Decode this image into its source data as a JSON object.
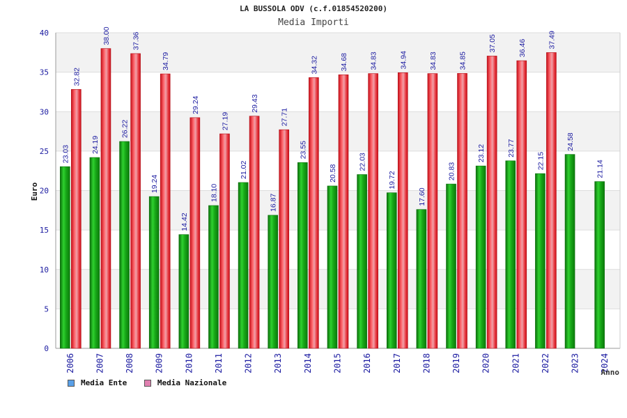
{
  "chart_data": {
    "type": "bar",
    "title": "LA BUSSOLA ODV (c.f.01854520200)",
    "subtitle": "Media Importi",
    "xlabel": "Anno",
    "ylabel": "Euro",
    "ylim": [
      0,
      40
    ],
    "yticks": [
      0,
      5,
      10,
      15,
      20,
      25,
      30,
      35,
      40
    ],
    "grid": true,
    "legend_position": "bottom-left",
    "categories": [
      "2006",
      "2007",
      "2008",
      "2009",
      "2010",
      "2011",
      "2012",
      "2013",
      "2014",
      "2015",
      "2016",
      "2017",
      "2018",
      "2019",
      "2020",
      "2021",
      "2022",
      "2023",
      "2024"
    ],
    "series": [
      {
        "name": "Media Ente",
        "color": "#1aa51a",
        "legend_color": "#5aa0e8",
        "values": [
          23.03,
          24.19,
          26.22,
          19.24,
          14.42,
          18.1,
          21.02,
          16.87,
          23.55,
          20.58,
          22.03,
          19.72,
          17.6,
          20.83,
          23.12,
          23.77,
          22.15,
          24.58,
          21.14
        ],
        "labels": [
          "23.03",
          "24.19",
          "26.22",
          "19.24",
          "14.42",
          "18.10",
          "21.02",
          "16.87",
          "23.55",
          "20.58",
          "22.03",
          "19.72",
          "17.60",
          "20.83",
          "23.12",
          "23.77",
          "22.15",
          "24.58",
          "21.14"
        ]
      },
      {
        "name": "Media Nazionale",
        "color": "#e8202a",
        "legend_color": "#e080b0",
        "values": [
          32.82,
          38.0,
          37.36,
          34.79,
          29.24,
          27.19,
          29.43,
          27.71,
          34.32,
          34.68,
          34.83,
          34.94,
          34.83,
          34.85,
          37.05,
          36.46,
          37.49,
          null,
          null
        ],
        "labels": [
          "32.82",
          "38.00",
          "37.36",
          "34.79",
          "29.24",
          "27.19",
          "29.43",
          "27.71",
          "34.32",
          "34.68",
          "34.83",
          "34.94",
          "34.83",
          "34.85",
          "37.05",
          "36.46",
          "37.49",
          null,
          null
        ]
      }
    ]
  }
}
